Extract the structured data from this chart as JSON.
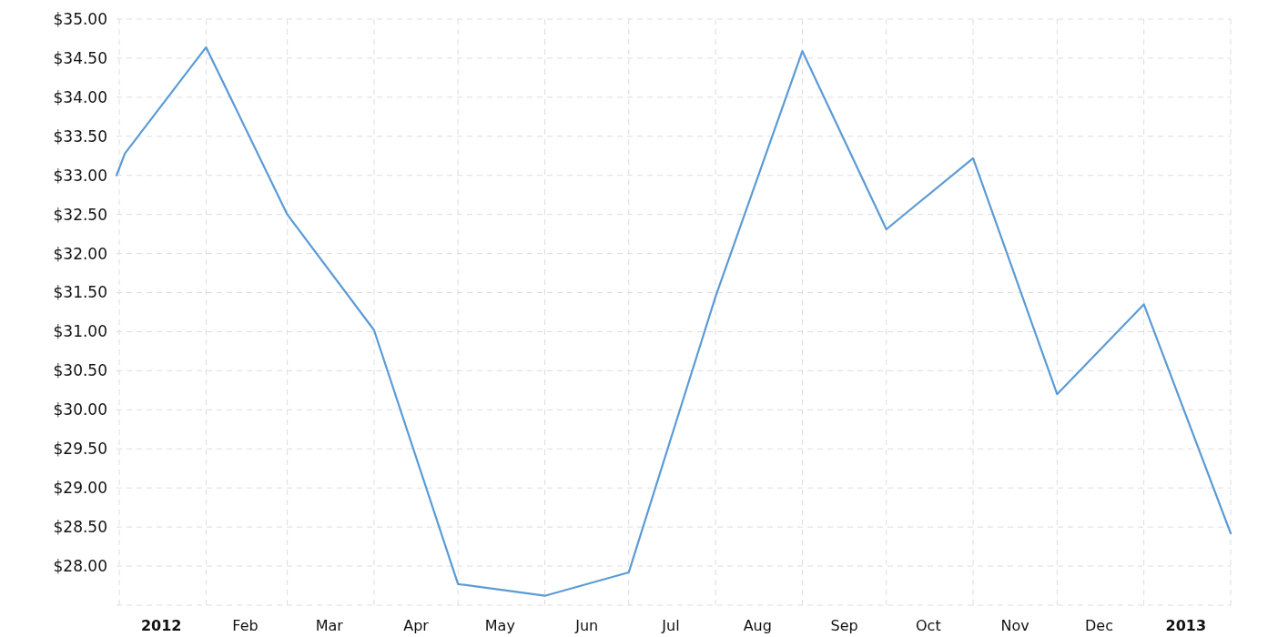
{
  "chart_data": {
    "type": "line",
    "x": [
      "2011-12-31",
      "2012-01-03",
      "2012-02-01",
      "2012-03-01",
      "2012-04-01",
      "2012-05-01",
      "2012-06-01",
      "2012-07-01",
      "2012-08-01",
      "2012-09-01",
      "2012-10-01",
      "2012-11-01",
      "2012-12-01",
      "2013-01-01",
      "2013-02-01"
    ],
    "series": [
      {
        "color": "#5b9bd5",
        "values": [
          33.0,
          33.28,
          34.64,
          32.5,
          31.02,
          27.77,
          27.62,
          27.92,
          31.45,
          34.59,
          32.31,
          33.22,
          30.2,
          31.35,
          28.42
        ]
      }
    ],
    "xlim": [
      "2011-12-31",
      "2013-02-01"
    ],
    "xticks": [
      {
        "value": "2012-01-01",
        "label": null
      },
      {
        "value": "2012-01-16",
        "label": "2012"
      },
      {
        "value": "2012-02-01",
        "label": null
      },
      {
        "value": "2012-02-15",
        "label": "Feb"
      },
      {
        "value": "2012-03-01",
        "label": null
      },
      {
        "value": "2012-03-16",
        "label": "Mar"
      },
      {
        "value": "2012-04-01",
        "label": null
      },
      {
        "value": "2012-04-16",
        "label": "Apr"
      },
      {
        "value": "2012-05-01",
        "label": null
      },
      {
        "value": "2012-05-16",
        "label": "May"
      },
      {
        "value": "2012-06-01",
        "label": null
      },
      {
        "value": "2012-06-16",
        "label": "Jun"
      },
      {
        "value": "2012-07-01",
        "label": null
      },
      {
        "value": "2012-07-16",
        "label": "Jul"
      },
      {
        "value": "2012-08-01",
        "label": null
      },
      {
        "value": "2012-08-16",
        "label": "Aug"
      },
      {
        "value": "2012-09-01",
        "label": null
      },
      {
        "value": "2012-09-16",
        "label": "Sep"
      },
      {
        "value": "2012-10-01",
        "label": null
      },
      {
        "value": "2012-10-16",
        "label": "Oct"
      },
      {
        "value": "2012-11-01",
        "label": null
      },
      {
        "value": "2012-11-16",
        "label": "Nov"
      },
      {
        "value": "2012-12-01",
        "label": null
      },
      {
        "value": "2012-12-16",
        "label": "Dec"
      },
      {
        "value": "2013-01-01",
        "label": null
      },
      {
        "value": "2013-01-16",
        "label": "2013"
      },
      {
        "value": "2013-02-01",
        "label": null
      }
    ],
    "ylim": [
      27.5,
      35
    ],
    "yticks": [
      {
        "value": 27.5,
        "label": null
      },
      {
        "value": 28,
        "label": "$28.00"
      },
      {
        "value": 28.5,
        "label": "$28.50"
      },
      {
        "value": 29,
        "label": "$29.00"
      },
      {
        "value": 29.5,
        "label": "$29.50"
      },
      {
        "value": 30,
        "label": "$30.00"
      },
      {
        "value": 30.5,
        "label": "$30.50"
      },
      {
        "value": 31,
        "label": "$31.00"
      },
      {
        "value": 31.5,
        "label": "$31.50"
      },
      {
        "value": 32,
        "label": "$32.00"
      },
      {
        "value": 32.5,
        "label": "$32.50"
      },
      {
        "value": 33,
        "label": "$33.00"
      },
      {
        "value": 33.5,
        "label": "$33.50"
      },
      {
        "value": 34,
        "label": "$34.00"
      },
      {
        "value": 34.5,
        "label": "$34.50"
      },
      {
        "value": 35,
        "label": "$35.00"
      }
    ],
    "grid": true,
    "marker": "none",
    "line_style": "solid"
  }
}
